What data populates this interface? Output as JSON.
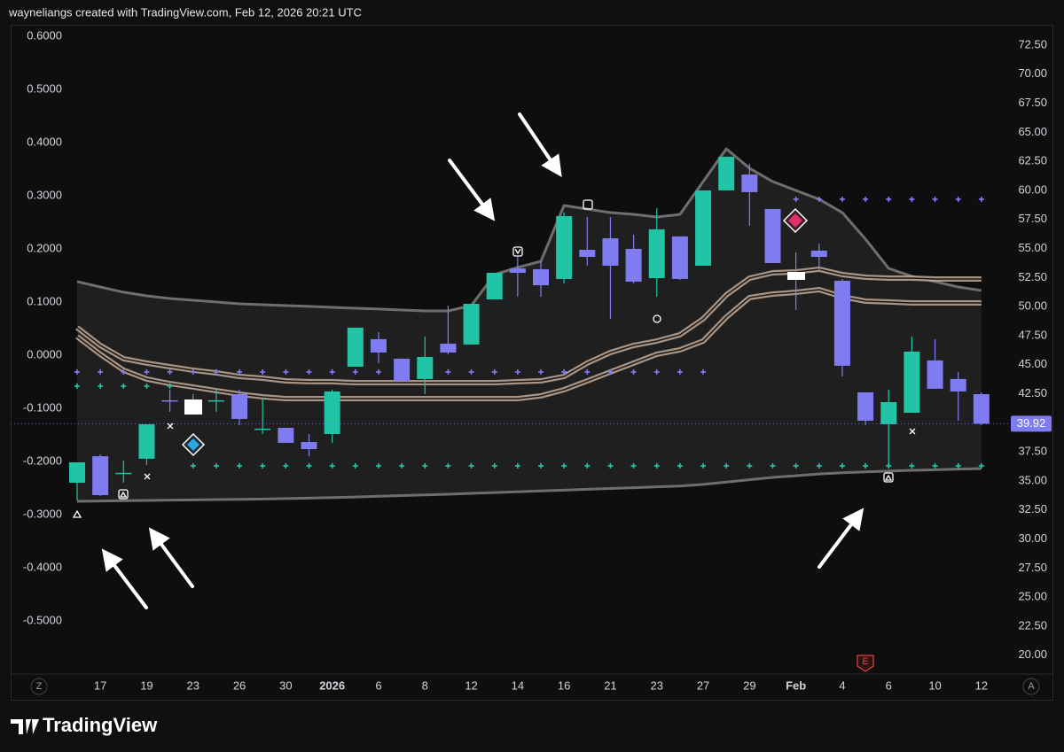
{
  "header": {
    "text": "wayneliangs created with TradingView.com, Feb 12, 2026 20:21 UTC"
  },
  "chart_data": {
    "type": "candlestick",
    "categories": [
      null,
      "17",
      null,
      "19",
      null,
      "23",
      null,
      "26",
      null,
      "30",
      null,
      "2026",
      null,
      "6",
      null,
      "8",
      null,
      "12",
      null,
      "14",
      null,
      "16",
      null,
      "21",
      null,
      "23",
      null,
      "27",
      null,
      "29",
      null,
      "Feb",
      null,
      "4",
      null,
      "6",
      null,
      "10",
      null,
      "12"
    ],
    "series": [
      {
        "axis": "y2",
        "up_color": "#22c4a6",
        "down_color": "#7f7cf2",
        "open": [
          34.85,
          37.13,
          35.61,
          36.91,
          41.94,
          41.86,
          41.86,
          42.47,
          39.42,
          39.57,
          38.35,
          39.04,
          44.83,
          47.2,
          45.52,
          43.77,
          46.81,
          46.74,
          50.62,
          53.29,
          53.22,
          52.38,
          54.89,
          55.88,
          54.97,
          52.45,
          56.04,
          53.52,
          60.0,
          61.37,
          58.4,
          52.91,
          54.82,
          52.23,
          42.62,
          39.88,
          40.87,
          45.37,
          43.77,
          42.47
        ],
        "high": [
          36.6,
          37.29,
          36.75,
          39.88,
          42.85,
          42.47,
          42.85,
          42.85,
          42.09,
          39.57,
          39.04,
          42.85,
          48.19,
          47.8,
          45.52,
          47.42,
          50.09,
          50.24,
          52.91,
          54.28,
          53.9,
          58.09,
          57.71,
          57.71,
          56.19,
          58.48,
          56.04,
          60.0,
          62.9,
          62.29,
          58.4,
          54.66,
          55.43,
          52.38,
          42.62,
          42.85,
          47.42,
          47.2,
          44.38,
          42.62
        ],
        "low": [
          33.32,
          33.7,
          34.85,
          36.37,
          40.95,
          40.95,
          40.95,
          39.8,
          39.04,
          38.28,
          37.13,
          38.28,
          44.83,
          45.14,
          43.61,
          42.47,
          45.9,
          46.74,
          50.62,
          50.85,
          50.85,
          52.0,
          53.52,
          48.95,
          52.0,
          50.85,
          52.3,
          53.52,
          60.0,
          56.95,
          53.75,
          49.71,
          53.14,
          43.99,
          39.8,
          36.37,
          40.87,
          42.93,
          40.18,
          39.8
        ],
        "close": [
          36.6,
          33.78,
          35.7,
          39.88,
          41.86,
          41.94,
          41.94,
          40.34,
          39.5,
          38.28,
          37.74,
          42.7,
          48.19,
          46.05,
          43.61,
          45.67,
          46.05,
          50.24,
          52.91,
          52.91,
          51.84,
          57.79,
          54.28,
          53.52,
          52.15,
          56.65,
          52.38,
          60.0,
          62.9,
          59.85,
          53.75,
          52.3,
          54.28,
          44.91,
          40.18,
          41.78,
          46.13,
          42.93,
          42.7,
          39.92
        ]
      }
    ],
    "overlays": [
      {
        "color": "#6e6e6e",
        "values": [
          52.15,
          51.69,
          51.24,
          50.93,
          50.7,
          50.55,
          50.4,
          50.24,
          50.17,
          50.09,
          50.02,
          49.94,
          49.86,
          49.79,
          49.71,
          49.63,
          49.63,
          50.09,
          52.76,
          53.37,
          53.9,
          58.7,
          58.4,
          58.09,
          57.94,
          57.71,
          57.94,
          60.76,
          63.58,
          61.9,
          60.76,
          60.0,
          59.24,
          58.09,
          55.81,
          53.29,
          52.61,
          52.15,
          51.69,
          51.39
        ]
      },
      {
        "color": "#bfa997",
        "values": [
          48.19,
          46.66,
          45.52,
          45.14,
          44.83,
          44.53,
          44.3,
          43.99,
          43.84,
          43.61,
          43.54,
          43.54,
          43.46,
          43.46,
          43.46,
          43.46,
          43.46,
          43.46,
          43.46,
          43.54,
          43.61,
          43.99,
          45.14,
          46.05,
          46.66,
          47.04,
          47.58,
          48.95,
          51.01,
          52.45,
          52.91,
          52.99,
          53.22,
          52.76,
          52.53,
          52.45,
          52.45,
          52.38,
          52.38,
          52.38
        ]
      },
      {
        "color": "#bfa997",
        "values": [
          47.42,
          45.9,
          44.53,
          43.77,
          43.38,
          43.08,
          42.77,
          42.47,
          42.24,
          42.09,
          42.09,
          42.09,
          42.09,
          42.09,
          42.09,
          42.09,
          42.09,
          42.09,
          42.09,
          42.09,
          42.32,
          42.85,
          43.61,
          44.38,
          45.14,
          45.9,
          46.28,
          47.04,
          49.1,
          50.78,
          51.08,
          51.23,
          51.46,
          50.85,
          50.47,
          50.4,
          50.32,
          50.32,
          50.32,
          50.32
        ]
      },
      {
        "color": "#6e6e6e",
        "values": [
          33.25,
          33.27,
          33.3,
          33.32,
          33.35,
          33.37,
          33.4,
          33.42,
          33.45,
          33.48,
          33.52,
          33.57,
          33.62,
          33.68,
          33.74,
          33.8,
          33.86,
          33.93,
          34.0,
          34.07,
          34.14,
          34.21,
          34.28,
          34.35,
          34.42,
          34.49,
          34.56,
          34.7,
          34.9,
          35.1,
          35.3,
          35.45,
          35.6,
          35.7,
          35.78,
          35.85,
          35.91,
          35.96,
          36.02,
          36.07
        ]
      }
    ],
    "crosses": [
      {
        "color": "#7f7cf2",
        "values": [
          44.38,
          44.38,
          44.38,
          44.38,
          44.38,
          44.38,
          44.38,
          44.38,
          44.38,
          44.38,
          44.38,
          44.38,
          44.38,
          44.38,
          44.38,
          44.38,
          44.38,
          44.38,
          44.38,
          44.38,
          44.38,
          44.38,
          44.38,
          44.38,
          44.38,
          44.38,
          44.38,
          44.38,
          null,
          null,
          null,
          59.24,
          59.24,
          59.24,
          59.24,
          59.24,
          59.24,
          59.24,
          59.24,
          59.24
        ]
      },
      {
        "color": "#22c4a6",
        "values": [
          43.16,
          43.16,
          43.16,
          43.16,
          43.16,
          36.3,
          36.3,
          36.3,
          36.3,
          36.3,
          36.3,
          36.3,
          36.3,
          36.3,
          36.3,
          36.3,
          36.3,
          36.3,
          36.3,
          36.3,
          36.3,
          36.3,
          36.3,
          36.3,
          36.3,
          36.3,
          36.3,
          36.3,
          36.3,
          36.3,
          36.3,
          36.3,
          36.3,
          36.3,
          36.3,
          36.3,
          36.3,
          36.3,
          36.3,
          36.3
        ]
      }
    ],
    "ylim": [
      -0.598,
      0.622
    ],
    "yticks": [
      {
        "value": 0.6,
        "label": "0.6000"
      },
      {
        "value": 0.5,
        "label": "0.5000"
      },
      {
        "value": 0.4,
        "label": "0.4000"
      },
      {
        "value": 0.3,
        "label": "0.3000"
      },
      {
        "value": 0.2,
        "label": "0.2000"
      },
      {
        "value": 0.1,
        "label": "0.1000"
      },
      {
        "value": 0,
        "label": "0.0000"
      },
      {
        "value": -0.1,
        "label": "-0.1000"
      },
      {
        "value": -0.2,
        "label": "-0.2000"
      },
      {
        "value": -0.3,
        "label": "-0.3000"
      },
      {
        "value": -0.4,
        "label": "-0.4000"
      },
      {
        "value": -0.5,
        "label": "-0.5000"
      }
    ],
    "y2lim": [
      18.46,
      74.25
    ],
    "y2ticks": [
      {
        "value": 72.5,
        "label": "72.50"
      },
      {
        "value": 70,
        "label": "70.00"
      },
      {
        "value": 67.5,
        "label": "67.50"
      },
      {
        "value": 65,
        "label": "65.00"
      },
      {
        "value": 62.5,
        "label": "62.50"
      },
      {
        "value": 60,
        "label": "60.00"
      },
      {
        "value": 57.5,
        "label": "57.50"
      },
      {
        "value": 55,
        "label": "55.00"
      },
      {
        "value": 52.5,
        "label": "52.50"
      },
      {
        "value": 50,
        "label": "50.00"
      },
      {
        "value": 47.5,
        "label": "47.50"
      },
      {
        "value": 45,
        "label": "45.00"
      },
      {
        "value": 42.5,
        "label": "42.50"
      },
      {
        "value": 40,
        "label": "40.00"
      },
      {
        "value": 37.5,
        "label": "37.50"
      },
      {
        "value": 35,
        "label": "35.00"
      },
      {
        "value": 32.5,
        "label": "32.50"
      },
      {
        "value": 30,
        "label": "30.00"
      },
      {
        "value": 27.5,
        "label": "27.50"
      },
      {
        "value": 25,
        "label": "25.00"
      },
      {
        "value": 22.5,
        "label": "22.50"
      },
      {
        "value": 20,
        "label": "20.00"
      }
    ],
    "grid": false
  },
  "toolbar": {
    "left": "Z",
    "right": "A"
  },
  "earnings_badge": "E",
  "footer": {
    "brand": "TradingView"
  }
}
